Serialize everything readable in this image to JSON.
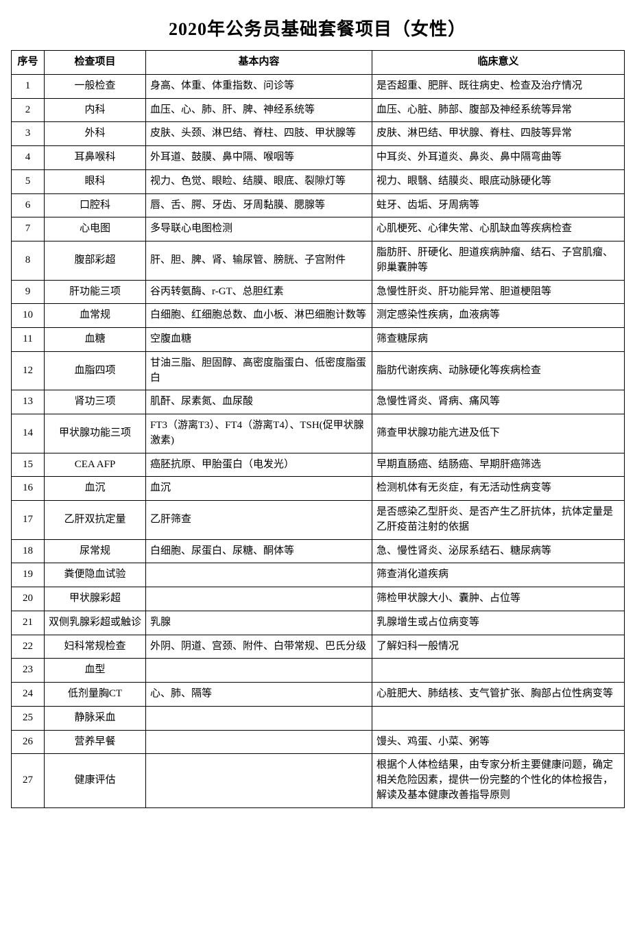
{
  "title": "2020年公务员基础套餐项目（女性）",
  "table": {
    "columns": [
      "序号",
      "检查项目",
      "基本内容",
      "临床意义"
    ],
    "rows": [
      [
        "1",
        "一般检查",
        "身高、体重、体重指数、问诊等",
        "是否超重、肥胖、既往病史、检查及治疗情况"
      ],
      [
        "2",
        "内科",
        "血压、心、肺、肝、脾、神经系统等",
        "血压、心脏、肺部、腹部及神经系统等异常"
      ],
      [
        "3",
        "外科",
        "皮肤、头颈、淋巴结、脊柱、四肢、甲状腺等",
        "皮肤、淋巴结、甲状腺、脊柱、四肢等异常"
      ],
      [
        "4",
        "耳鼻喉科",
        "外耳道、鼓膜、鼻中隔、喉咽等",
        "中耳炎、外耳道炎、鼻炎、鼻中隔弯曲等"
      ],
      [
        "5",
        "眼科",
        "视力、色觉、眼睑、结膜、眼底、裂隙灯等",
        "视力、眼翳、结膜炎、眼底动脉硬化等"
      ],
      [
        "6",
        "口腔科",
        "唇、舌、腭、牙齿、牙周黏膜、腮腺等",
        "蛀牙、齿垢、牙周病等"
      ],
      [
        "7",
        "心电图",
        "多导联心电图检测",
        "心肌梗死、心律失常、心肌缺血等疾病检查"
      ],
      [
        "8",
        "腹部彩超",
        "肝、胆、脾、肾、输尿管、膀胱、子宫附件",
        "脂肪肝、肝硬化、胆道疾病肿瘤、结石、子宫肌瘤、卵巢囊肿等"
      ],
      [
        "9",
        "肝功能三项",
        "谷丙转氨酶、r-GT、总胆红素",
        "急慢性肝炎、肝功能异常、胆道梗阻等"
      ],
      [
        "10",
        "血常规",
        "白细胞、红细胞总数、血小板、淋巴细胞计数等",
        "测定感染性疾病，血液病等"
      ],
      [
        "11",
        "血糖",
        "空腹血糖",
        "筛查糖尿病"
      ],
      [
        "12",
        "血脂四项",
        "甘油三脂、胆固醇、高密度脂蛋白、低密度脂蛋白",
        "脂肪代谢疾病、动脉硬化等疾病检查"
      ],
      [
        "13",
        "肾功三项",
        "肌酐、尿素氮、血尿酸",
        "急慢性肾炎、肾病、痛风等"
      ],
      [
        "14",
        "甲状腺功能三项",
        "FT3（游离T3）、FT4（游离T4）、TSH(促甲状腺激素)",
        "筛查甲状腺功能亢进及低下"
      ],
      [
        "15",
        "CEA AFP",
        "癌胚抗原、甲胎蛋白（电发光）",
        "早期直肠癌、结肠癌、早期肝癌筛选"
      ],
      [
        "16",
        "血沉",
        "血沉",
        "检测机体有无炎症，有无活动性病变等"
      ],
      [
        "17",
        "乙肝双抗定量",
        "乙肝筛查",
        "是否感染乙型肝炎、是否产生乙肝抗体，抗体定量是乙肝疫苗注射的依据"
      ],
      [
        "18",
        "尿常规",
        "白细胞、尿蛋白、尿糖、酮体等",
        "急、慢性肾炎、泌尿系结石、糖尿病等"
      ],
      [
        "19",
        "粪便隐血试验",
        "",
        "筛查消化道疾病"
      ],
      [
        "20",
        "甲状腺彩超",
        "",
        "筛检甲状腺大小、囊肿、占位等"
      ],
      [
        "21",
        "双侧乳腺彩超或触诊",
        "乳腺",
        "乳腺增生或占位病变等"
      ],
      [
        "22",
        "妇科常规检查",
        "外阴、阴道、宫颈、附件、白带常规、巴氏分级",
        "了解妇科一般情况"
      ],
      [
        "23",
        "血型",
        "",
        ""
      ],
      [
        "24",
        "低剂量胸CT",
        "心、肺、隔等",
        "心脏肥大、肺结核、支气管扩张、胸部占位性病变等"
      ],
      [
        "25",
        "静脉采血",
        "",
        ""
      ],
      [
        "26",
        "营养早餐",
        "",
        "馒头、鸡蛋、小菜、粥等"
      ],
      [
        "27",
        "健康评估",
        "",
        "根据个人体检结果，由专家分析主要健康问题，确定相关危险因素，提供一份完整的个性化的体检报告，解读及基本健康改善指导原则"
      ]
    ]
  },
  "style": {
    "background_color": "#ffffff",
    "border_color": "#000000",
    "title_fontsize": 26,
    "cell_fontsize": 15,
    "font_family": "SimSun"
  }
}
